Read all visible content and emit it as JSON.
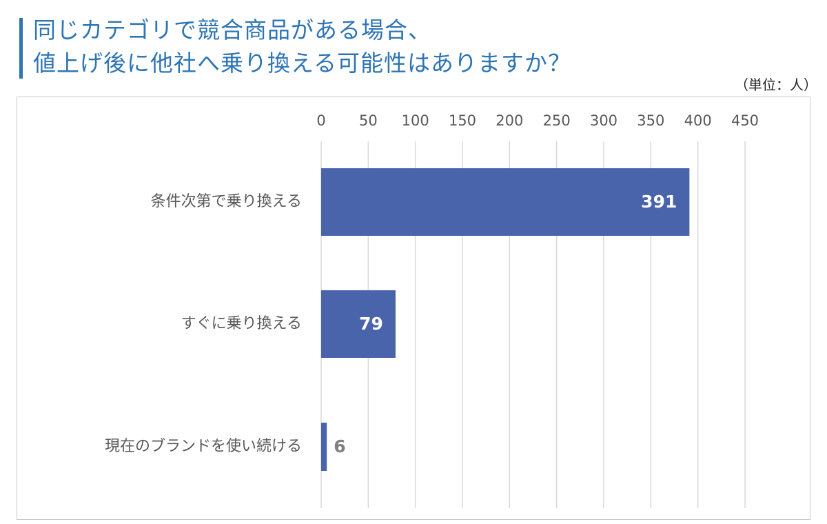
{
  "title": {
    "line1": "同じカテゴリで競合商品がある場合、",
    "line2": "値上げ後に他社へ乗り換える可能性はありますか？"
  },
  "unit_label": "（単位：人）",
  "colors": {
    "accent": "#2E75B6",
    "bar": "#4A64AB",
    "gridline": "#D9D9D9",
    "text": "#595959"
  },
  "chart_data": {
    "type": "bar",
    "orientation": "horizontal",
    "title": "同じカテゴリで競合商品がある場合、値上げ後に他社へ乗り換える可能性はありますか？",
    "unit": "（単位：人）",
    "categories": [
      "条件次第で乗り換える",
      "すぐに乗り換える",
      "現在のブランドを使い続ける"
    ],
    "values": [
      391,
      79,
      6
    ],
    "xlim": [
      0,
      450
    ],
    "xticks": [
      0,
      50,
      100,
      150,
      200,
      250,
      300,
      350,
      400,
      450
    ],
    "axis_position": "top",
    "grid": true,
    "legend": "none"
  }
}
